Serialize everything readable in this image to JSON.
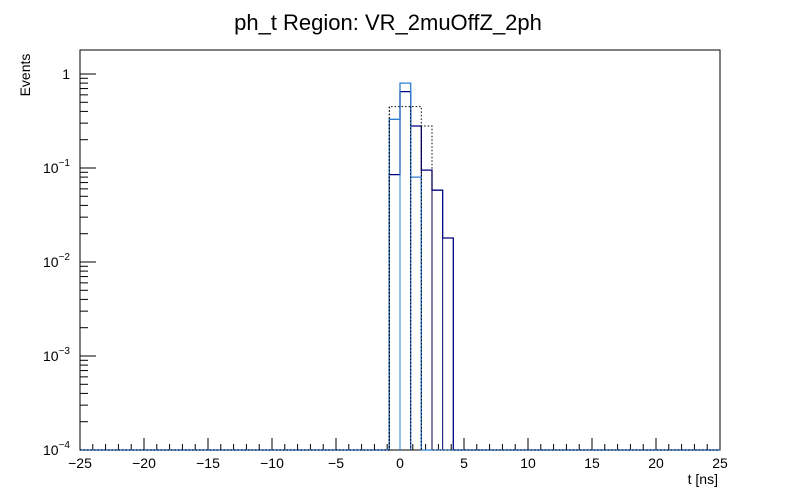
{
  "chart_data": {
    "type": "histogram",
    "title": "ph_t Region: VR_2muOffZ_2ph",
    "xlabel": "t [ns]",
    "ylabel": "Events",
    "xlim": [
      -25,
      25
    ],
    "ylim": [
      0.0001,
      1.8
    ],
    "yscale": "log",
    "grid": false,
    "legend": "none",
    "bin_width": 0.8333,
    "x_ticks": [
      -25,
      -20,
      -15,
      -10,
      -5,
      0,
      5,
      10,
      15,
      20,
      25
    ],
    "x_tick_labels": [
      "−25",
      "−20",
      "−15",
      "−10",
      "−5",
      "0",
      "5",
      "10",
      "15",
      "20",
      "25"
    ],
    "y_ticks": [
      {
        "value": 1,
        "label": "1",
        "base": "",
        "exp": ""
      },
      {
        "value": 0.1,
        "label": "",
        "base": "10",
        "exp": "−1"
      },
      {
        "value": 0.01,
        "label": "",
        "base": "10",
        "exp": "−2"
      },
      {
        "value": 0.001,
        "label": "",
        "base": "10",
        "exp": "−3"
      },
      {
        "value": 0.0001,
        "label": "",
        "base": "10",
        "exp": "−4"
      }
    ],
    "series": [
      {
        "style": "solid",
        "color": "#00007f",
        "bins": [
          {
            "x0": -0.833,
            "x1": 0.0,
            "y": 0.085
          },
          {
            "x0": 0.0,
            "x1": 0.833,
            "y": 0.65
          },
          {
            "x0": 0.833,
            "x1": 1.667,
            "y": 0.28
          },
          {
            "x0": 1.667,
            "x1": 2.5,
            "y": 0.095
          },
          {
            "x0": 2.5,
            "x1": 3.333,
            "y": 0.058
          },
          {
            "x0": 3.333,
            "x1": 4.167,
            "y": 0.018
          }
        ]
      },
      {
        "style": "solid",
        "color": "#2c7fd0",
        "bins": [
          {
            "x0": -0.833,
            "x1": 0.0,
            "y": 0.33
          },
          {
            "x0": 0.0,
            "x1": 0.833,
            "y": 0.8
          },
          {
            "x0": 0.833,
            "x1": 1.667,
            "y": 0.08
          }
        ]
      },
      {
        "style": "dotted",
        "color": "#000000",
        "bins": [
          {
            "x0": -0.833,
            "x1": 0.833,
            "y": 0.45
          },
          {
            "x0": 0.833,
            "x1": 1.667,
            "y": 0.45
          },
          {
            "x0": 1.667,
            "x1": 2.5,
            "y": 0.28
          }
        ]
      }
    ]
  }
}
